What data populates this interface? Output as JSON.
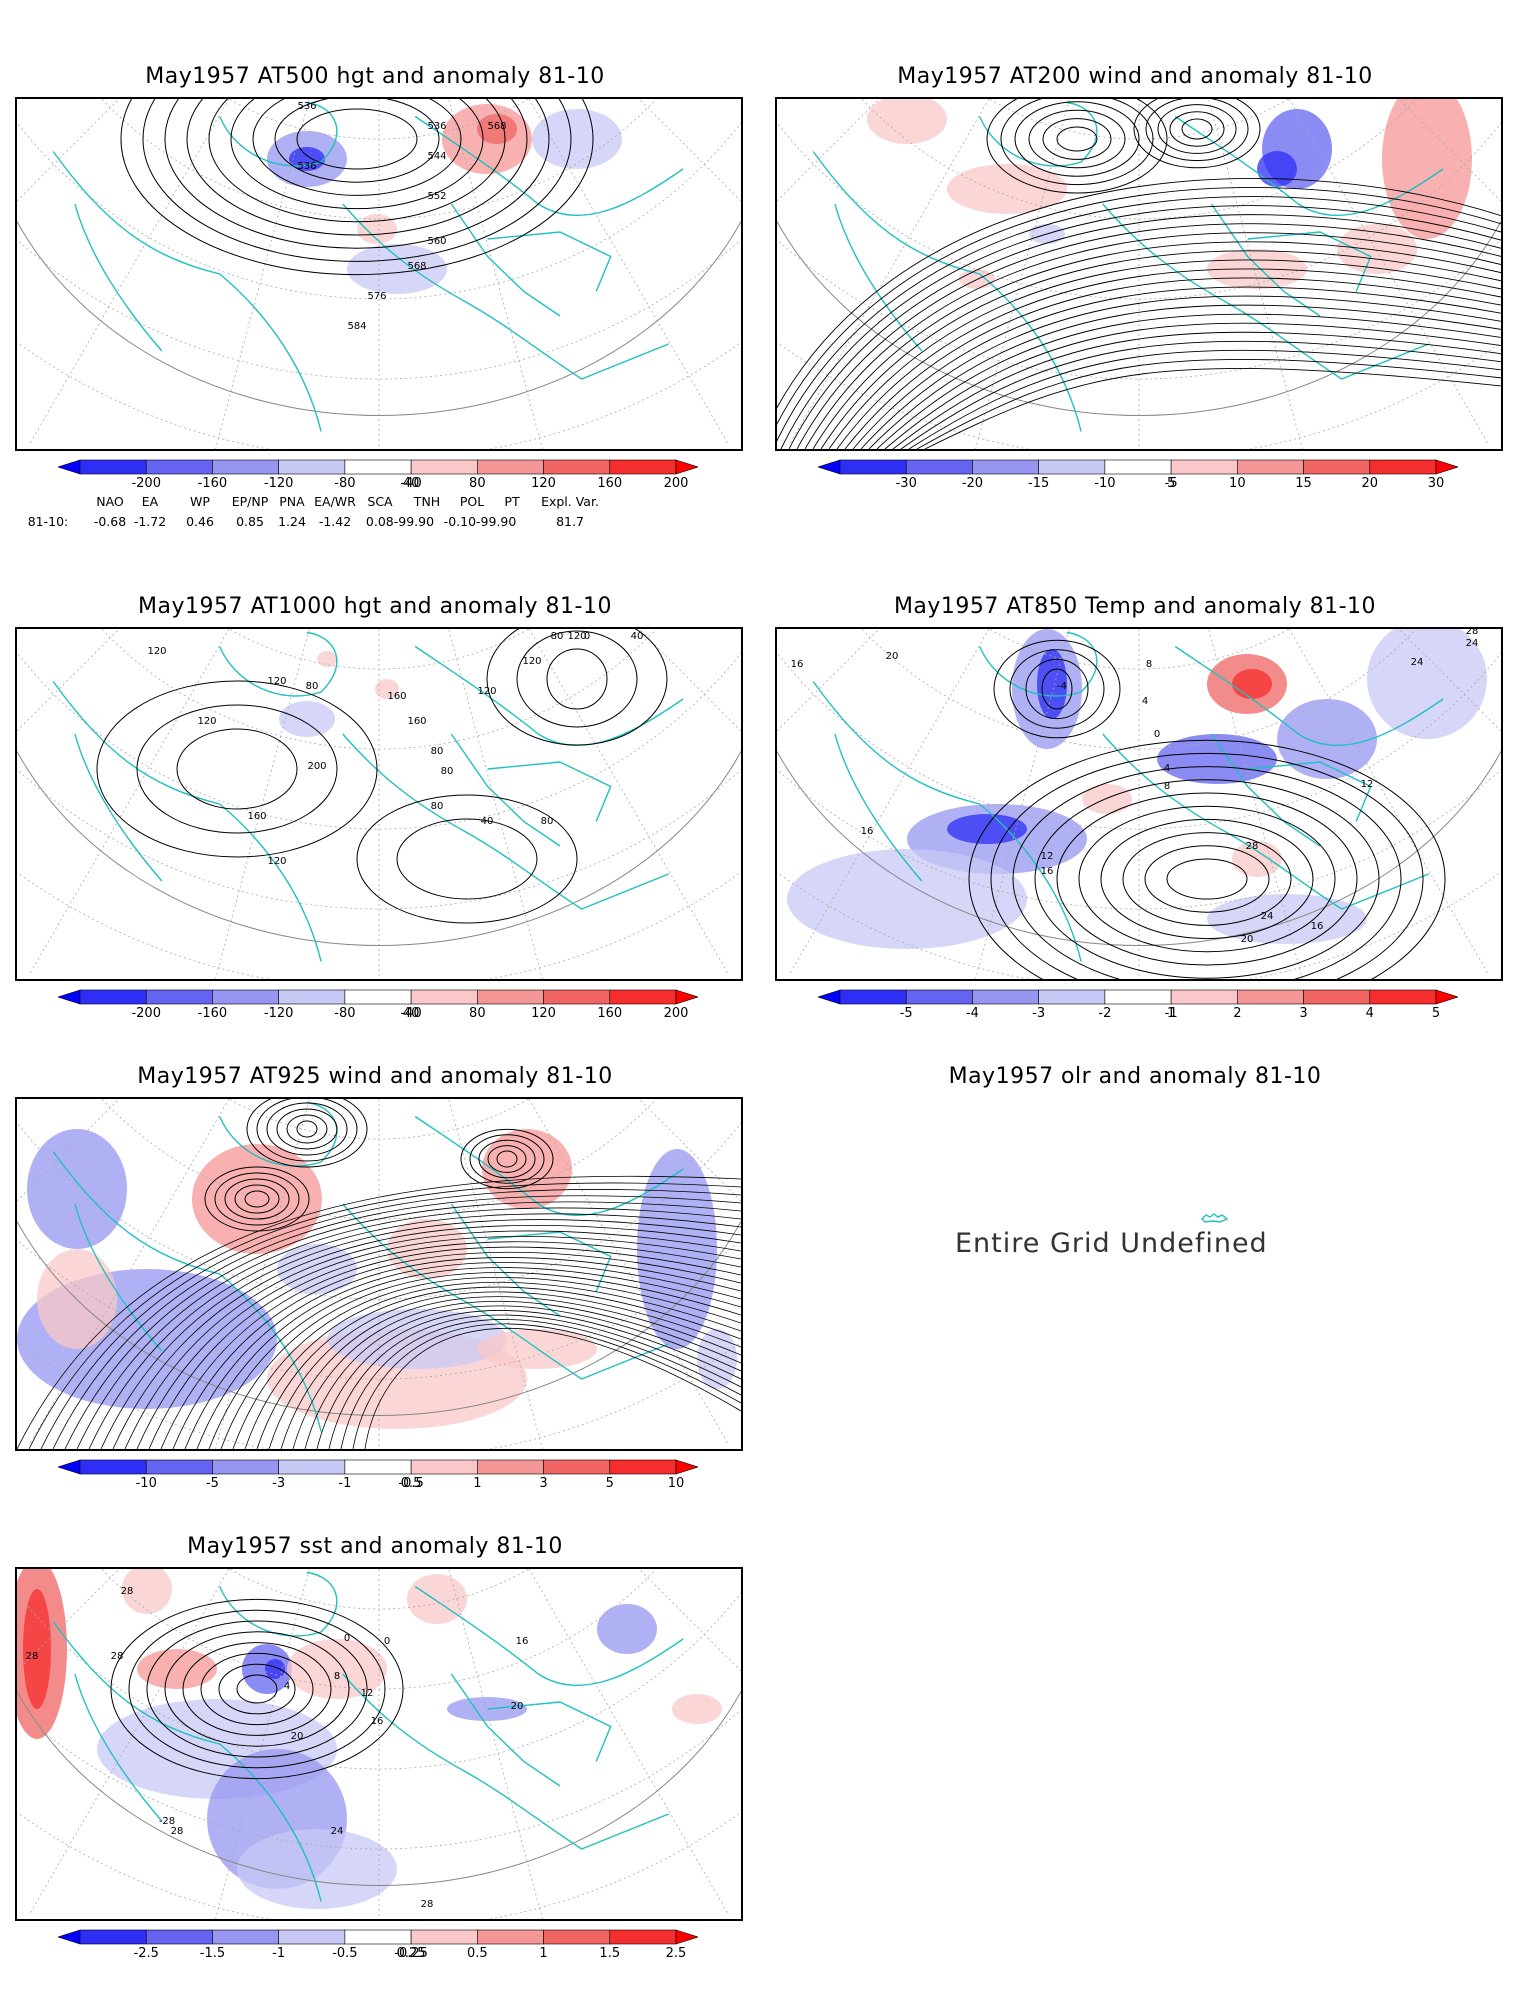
{
  "panels": [
    {
      "id": "p1",
      "title": "May1957 AT500 hgt and anomaly 81-10",
      "contour_labels": [
        "536",
        "536",
        "536",
        "544",
        "552",
        "560",
        "568",
        "576",
        "584",
        "568"
      ],
      "colorbar": {
        "labels": [
          "-200",
          "-160",
          "-120",
          "-80",
          "-40",
          "40",
          "80",
          "120",
          "160",
          "200"
        ],
        "colors": [
          "#0000ff",
          "#2e2ef5",
          "#6464f0",
          "#9696f0",
          "#c8c8f5",
          "#ffffff",
          "#fac8c8",
          "#f59696",
          "#f06464",
          "#f52e2e",
          "#ff0000"
        ]
      }
    },
    {
      "id": "p2",
      "title": "May1957 AT200 wind and anomaly 81-10",
      "colorbar": {
        "labels": [
          "-30",
          "-20",
          "-15",
          "-10",
          "-5",
          "5",
          "10",
          "15",
          "20",
          "30"
        ],
        "colors": [
          "#0000ff",
          "#2e2ef5",
          "#6464f0",
          "#9696f0",
          "#c8c8f5",
          "#ffffff",
          "#fac8c8",
          "#f59696",
          "#f06464",
          "#f52e2e",
          "#ff0000"
        ]
      }
    },
    {
      "id": "p3",
      "title": "May1957 AT1000 hgt and anomaly 81-10",
      "contour_labels": [
        "120",
        "120",
        "80",
        "160",
        "120",
        "200",
        "160",
        "120",
        "80",
        "160",
        "120",
        "80",
        "80",
        "40",
        "80",
        "120",
        "0",
        "40",
        "80",
        "120"
      ],
      "colorbar": {
        "labels": [
          "-200",
          "-160",
          "-120",
          "-80",
          "-40",
          "40",
          "80",
          "120",
          "160",
          "200"
        ],
        "colors": [
          "#0000ff",
          "#2e2ef5",
          "#6464f0",
          "#9696f0",
          "#c8c8f5",
          "#ffffff",
          "#fac8c8",
          "#f59696",
          "#f06464",
          "#f52e2e",
          "#ff0000"
        ]
      }
    },
    {
      "id": "p4",
      "title": "May1957 AT850 Temp and anomaly 81-10",
      "contour_labels": [
        "16",
        "20",
        "8",
        "4",
        "0",
        "4",
        "8",
        "12",
        "16",
        "12",
        "16",
        "24",
        "28",
        "24",
        "20",
        "28",
        "24",
        "16",
        "-4"
      ],
      "colorbar": {
        "labels": [
          "-5",
          "-4",
          "-3",
          "-2",
          "-1",
          "1",
          "2",
          "3",
          "4",
          "5"
        ],
        "colors": [
          "#0000ff",
          "#2e2ef5",
          "#6464f0",
          "#9696f0",
          "#c8c8f5",
          "#ffffff",
          "#fac8c8",
          "#f59696",
          "#f06464",
          "#f52e2e",
          "#ff0000"
        ]
      }
    },
    {
      "id": "p5",
      "title": "May1957 AT925 wind and anomaly 81-10",
      "colorbar": {
        "labels": [
          "-10",
          "-5",
          "-3",
          "-1",
          "-0.5",
          "0.5",
          "1",
          "3",
          "5",
          "10"
        ],
        "colors": [
          "#0000ff",
          "#2e2ef5",
          "#6464f0",
          "#9696f0",
          "#c8c8f5",
          "#ffffff",
          "#fac8c8",
          "#f59696",
          "#f06464",
          "#f52e2e",
          "#ff0000"
        ]
      }
    },
    {
      "id": "p6",
      "title": "May1957 olr and anomaly 81-10",
      "message": "Entire Grid Undefined"
    },
    {
      "id": "p7",
      "title": "May1957 sst and anomaly 81-10",
      "contour_labels": [
        "28",
        "28",
        "28",
        "4",
        "0",
        "0",
        "8",
        "12",
        "16",
        "20",
        "24",
        "28",
        "-28",
        "28",
        "16",
        "20"
      ],
      "colorbar": {
        "labels": [
          "-2.5",
          "-1.5",
          "-1",
          "-0.5",
          "-0.25",
          "0.25",
          "0.5",
          "1",
          "1.5",
          "2.5"
        ],
        "colors": [
          "#0000ff",
          "#2e2ef5",
          "#6464f0",
          "#9696f0",
          "#c8c8f5",
          "#ffffff",
          "#fac8c8",
          "#f59696",
          "#f06464",
          "#f52e2e",
          "#ff0000"
        ]
      }
    }
  ],
  "indices": {
    "headers": [
      "NAO",
      "EA",
      "WP",
      "EP/NP",
      "PNA",
      "EA/WR",
      "SCA",
      "TNH",
      "POL",
      "PT",
      "Expl. Var."
    ],
    "row_label": "81-10:",
    "values": [
      "-0.68",
      "-1.72",
      "0.46",
      "0.85",
      "1.24",
      "-1.42",
      "0.08-99.90",
      "-0.10-99.90",
      "81.7"
    ]
  },
  "colors": {
    "coast": "#20c0c0",
    "contour": "#000000",
    "grid": "#999999"
  }
}
